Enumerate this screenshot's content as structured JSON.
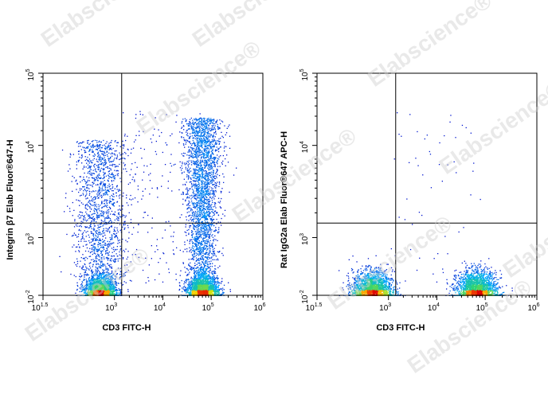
{
  "watermark": {
    "text": "Elabscience",
    "mark": "®"
  },
  "chart_data": [
    {
      "type": "scatter",
      "title": "",
      "xlabel": "CD3 FITC-H",
      "ylabel": "Integrin β7 Elab Fluor®647-H",
      "x_scale": "log",
      "y_scale": "log",
      "xlim": [
        31.6,
        1000000
      ],
      "ylim": [
        -100,
        100000
      ],
      "x_tick_labels": [
        "10^1.5",
        "10^3",
        "10^4",
        "10^5",
        "10^6"
      ],
      "y_tick_labels": [
        "10^-2",
        "10^3",
        "10^4",
        "10^5"
      ],
      "gate": {
        "x": 1400,
        "y": 1500
      },
      "populations": [
        {
          "name": "",
          "x_center": 500,
          "y_center": -30,
          "density": "high"
        },
        {
          "name": "",
          "x_center": 500,
          "y_center": 4000,
          "density": "medium"
        },
        {
          "name": "",
          "x_center": 60000,
          "y_center": -30,
          "density": "high"
        },
        {
          "name": "",
          "x_center": 60000,
          "y_center": 6000,
          "density": "high"
        }
      ]
    },
    {
      "type": "scatter",
      "title": "",
      "xlabel": "CD3 FITC-H",
      "ylabel": "Rat IgG2a Elab Fluor®647 APC-H",
      "x_scale": "log",
      "y_scale": "log",
      "xlim": [
        31.6,
        1000000
      ],
      "ylim": [
        -100,
        100000
      ],
      "x_tick_labels": [
        "10^1.5",
        "10^3",
        "10^4",
        "10^5",
        "10^6"
      ],
      "y_tick_labels": [
        "10^-2",
        "10^3",
        "10^4",
        "10^5"
      ],
      "gate": {
        "x": 1400,
        "y": 1500
      },
      "populations": [
        {
          "name": "",
          "x_center": 450,
          "y_center": -20,
          "density": "high"
        },
        {
          "name": "",
          "x_center": 60000,
          "y_center": -20,
          "density": "high"
        }
      ]
    }
  ]
}
